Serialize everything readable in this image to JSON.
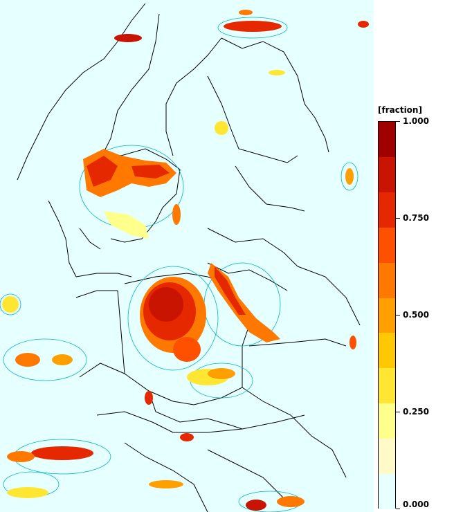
{
  "legend": {
    "title": "[fraction]",
    "min": 0.0,
    "max": 1.0,
    "colors": [
      "#e6ffff",
      "#fffac8",
      "#ffff8c",
      "#ffe632",
      "#ffc800",
      "#ffa000",
      "#ff7800",
      "#ff5000",
      "#e62800",
      "#c81400",
      "#a00000"
    ],
    "ticks": [
      {
        "value": 1.0,
        "label": "1.000"
      },
      {
        "value": 0.75,
        "label": "0.750"
      },
      {
        "value": 0.5,
        "label": "0.500"
      },
      {
        "value": 0.25,
        "label": "0.250"
      },
      {
        "value": 0.0,
        "label": "0.000"
      }
    ]
  },
  "map": {
    "background_color": "#e6ffff",
    "border_color": "#000000",
    "contour_color": "#00b4c8"
  }
}
